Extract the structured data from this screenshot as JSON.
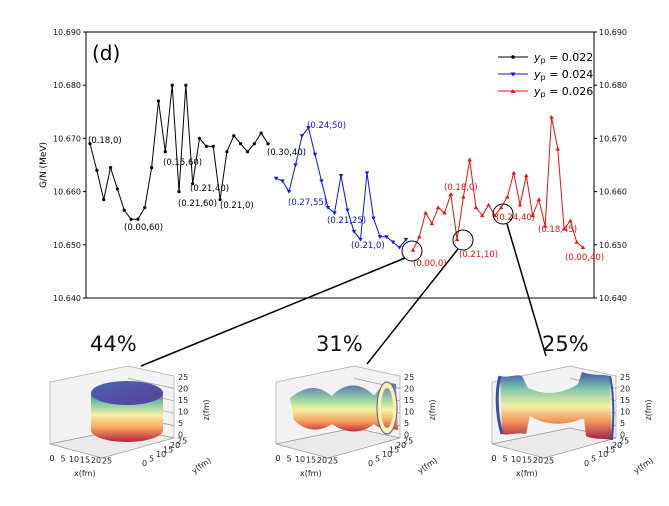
{
  "chart_data": {
    "type": "line",
    "panel_label": "(d)",
    "ylabel": "G/N (MeV)",
    "ylim": [
      10.64,
      10.69
    ],
    "yticks": [
      "10.640",
      "10.650",
      "10.660",
      "10.670",
      "10.680",
      "10.690"
    ],
    "legend_position": "top-right",
    "series": [
      {
        "name": "y_p = 0.022",
        "legend_prefix": "y",
        "legend_sub": "p",
        "legend_value": " = 0.022",
        "color": "#000000",
        "marker": "circle",
        "values": [
          10.669,
          10.664,
          10.6585,
          10.6645,
          10.6605,
          10.6565,
          10.6548,
          10.6548,
          10.657,
          10.6645,
          10.677,
          10.6675,
          10.68,
          10.66,
          10.68,
          10.6615,
          10.67,
          10.6685,
          10.6685,
          10.6585,
          10.6675,
          10.6705,
          10.669,
          10.6675,
          10.669,
          10.671,
          10.669
        ]
      },
      {
        "name": "y_p = 0.024",
        "legend_prefix": "y",
        "legend_sub": "p",
        "legend_value": " = 0.024",
        "color": "#0a14e6",
        "marker": "triangle-down",
        "values": [
          10.6625,
          10.662,
          10.66,
          10.665,
          10.6705,
          10.672,
          10.667,
          10.662,
          10.657,
          10.656,
          10.663,
          10.6565,
          10.6525,
          10.651,
          10.6635,
          10.655,
          10.6515,
          10.6515,
          10.6505,
          10.6495,
          10.651
        ]
      },
      {
        "name": "y_p = 0.026",
        "legend_prefix": "y",
        "legend_sub": "p",
        "legend_value": " = 0.026",
        "color": "#e8120c",
        "marker": "triangle-up",
        "values": [
          10.649,
          10.6515,
          10.656,
          10.654,
          10.657,
          10.656,
          10.6595,
          10.651,
          10.659,
          10.666,
          10.657,
          10.6555,
          10.6575,
          10.6555,
          10.657,
          10.659,
          10.6635,
          10.6575,
          10.663,
          10.6555,
          10.6585,
          10.6535,
          10.674,
          10.668,
          10.653,
          10.6545,
          10.6505,
          10.6495
        ]
      }
    ],
    "annotations": [
      {
        "text": "(0.18,0)",
        "series": 0
      },
      {
        "text": "(0.15,60)",
        "series": 0
      },
      {
        "text": "(0.21,40)",
        "series": 0
      },
      {
        "text": "(0.30,40)",
        "series": 0
      },
      {
        "text": "(0.21,60)",
        "series": 0
      },
      {
        "text": "(0.21,0)",
        "series": 0
      },
      {
        "text": "(0.00,60)",
        "series": 0
      },
      {
        "text": "(0.24,50)",
        "series": 1
      },
      {
        "text": "(0.27,55)",
        "series": 1
      },
      {
        "text": "(0.21,25)",
        "series": 1
      },
      {
        "text": "(0.21,0)",
        "series": 1
      },
      {
        "text": "(0.18,0)",
        "series": 2
      },
      {
        "text": "(0.24,40)",
        "series": 2
      },
      {
        "text": "(0.18,45)",
        "series": 2
      },
      {
        "text": "(0.00,40)",
        "series": 2
      },
      {
        "text": "(0.00,0)",
        "series": 2
      },
      {
        "text": "(0.21,10)",
        "series": 2
      }
    ],
    "insets": [
      {
        "percent": "44%",
        "shape": "cylinder"
      },
      {
        "percent": "31%",
        "shape": "tube"
      },
      {
        "percent": "25%",
        "shape": "slab"
      }
    ],
    "inset_axes": {
      "z_ticks": [
        "25",
        "20",
        "15",
        "10",
        "5",
        "0"
      ],
      "x_ticks": [
        "0",
        "5",
        "10",
        "15",
        "20",
        "25"
      ],
      "y_ticks": [
        "0",
        "5",
        "10",
        "15",
        "20",
        "25"
      ],
      "xlabel": "x(fm)",
      "ylabel": "y(fm)",
      "zlabel": "z(fm)"
    }
  }
}
